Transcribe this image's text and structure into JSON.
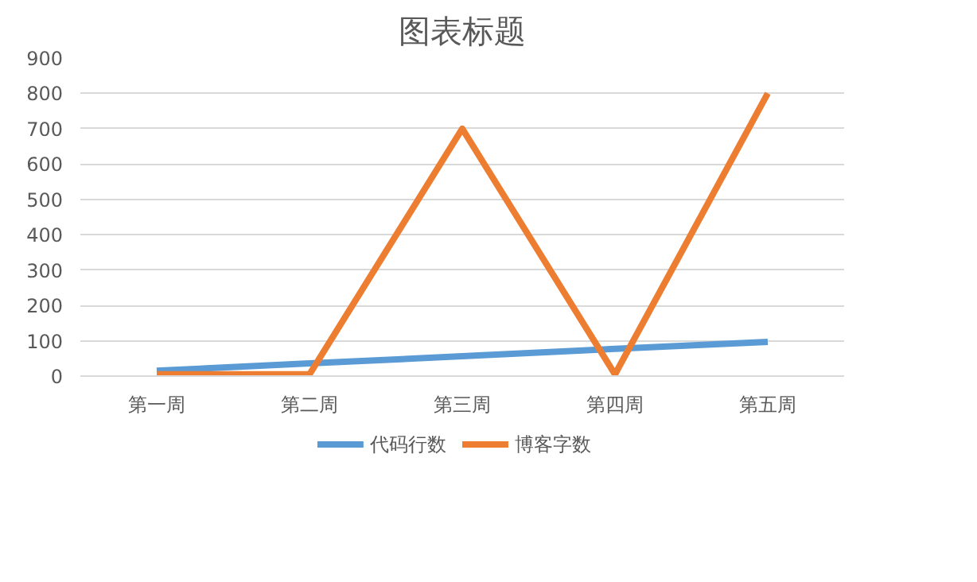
{
  "chart_data": {
    "type": "line",
    "title": "图表标题",
    "categories": [
      "第一周",
      "第二周",
      "第三周",
      "第四周",
      "第五周"
    ],
    "series": [
      {
        "name": "代码行数",
        "color": "#5b9bd5",
        "values": [
          15,
          36,
          56,
          77,
          97
        ]
      },
      {
        "name": "博客字数",
        "color": "#ed7d31",
        "values": [
          5,
          5,
          700,
          5,
          800
        ]
      }
    ],
    "ylim": [
      0,
      900
    ],
    "yticks": [
      0,
      100,
      200,
      300,
      400,
      500,
      600,
      700,
      800,
      900
    ],
    "grid": "y",
    "legend": "bottom",
    "line_style": "solid",
    "marker": "none"
  }
}
